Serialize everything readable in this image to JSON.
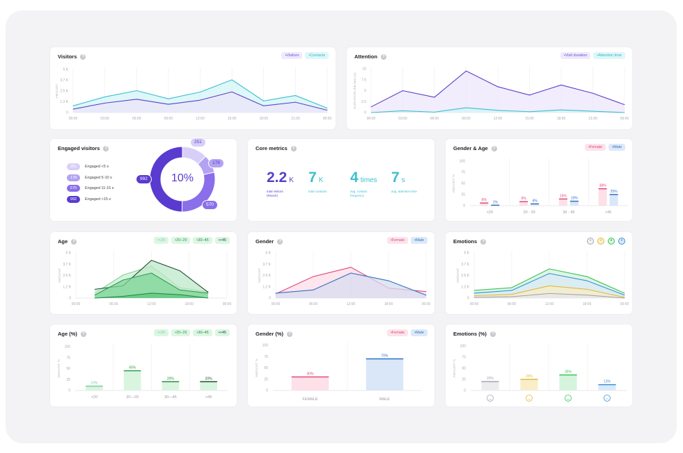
{
  "colors": {
    "purple": "#5b3fc9",
    "teal": "#3bbfcf",
    "female": "#e0487a",
    "male": "#2f6fc4",
    "green": "#2f9e4f"
  },
  "cards": {
    "visitors": {
      "title": "Visitors",
      "legend": [
        "Visitors",
        "Contacts"
      ]
    },
    "attention": {
      "title": "Attention",
      "legend": [
        "Visit duration",
        "Attention time"
      ]
    },
    "engaged": {
      "title": "Engaged visitors",
      "center": "10%",
      "items": [
        {
          "value": "251",
          "label": "Engaged <5 s",
          "color": "#d8cff8"
        },
        {
          "value": "178",
          "label": "Engaged 5-10 s",
          "color": "#b3a2f2"
        },
        {
          "value": "570",
          "label": "Engaged 11-15 s",
          "color": "#8a6eea"
        },
        {
          "value": "992",
          "label": "Engaged >15 s",
          "color": "#5a3bcf"
        }
      ]
    },
    "core": {
      "title": "Core metrics",
      "metrics": [
        {
          "value": "2.2",
          "unit": "K",
          "label": "total visitors (Reach)",
          "color": "#5b3fc9"
        },
        {
          "value": "7",
          "unit": "K",
          "label": "total contacts",
          "color": "#3bbfcf"
        },
        {
          "value": "4",
          "unit": "times",
          "label": "avg. contact frequency",
          "color": "#3bbfcf"
        },
        {
          "value": "7",
          "unit": "s",
          "label": "avg. attention time",
          "color": "#3bbfcf"
        }
      ]
    },
    "gender_age": {
      "title": "Gender & Age",
      "legend": [
        "Female",
        "Male"
      ]
    },
    "age": {
      "title": "Age",
      "legend": [
        "<20",
        "20–29",
        "30–45",
        ">45"
      ]
    },
    "gender": {
      "title": "Gender",
      "legend": [
        "Female",
        "Male"
      ]
    },
    "emotions": {
      "title": "Emotions",
      "icons": [
        "neutral-face",
        "happy-face",
        "surprised-face",
        "sad-face"
      ]
    },
    "age_pct": {
      "title": "Age (%)",
      "legend": [
        "<20",
        "20–29",
        "30–45",
        ">45"
      ]
    },
    "gender_pct": {
      "title": "Gender (%)",
      "legend": [
        "Female",
        "Male"
      ]
    },
    "emotions_pct": {
      "title": "Emotions (%)"
    }
  },
  "chart_data": [
    {
      "type": "area",
      "ylabel": "AMOUNT",
      "ylim": [
        0,
        5000
      ],
      "yticks": [
        "0",
        "1.2 K",
        "2.5 K",
        "3.7 K",
        "5 K"
      ],
      "xticks": [
        "00:00",
        "03:00",
        "06:00",
        "09:00",
        "12:00",
        "15:00",
        "18:00",
        "21:00",
        "00:00"
      ],
      "x": [
        "00:00",
        "03:00",
        "06:00",
        "09:00",
        "12:00",
        "15:00",
        "18:00",
        "21:00",
        "00:00"
      ],
      "series": [
        {
          "name": "Contacts",
          "color": "#3bbfcf",
          "fill": "#d3f4f6",
          "values": [
            780,
            1820,
            2540,
            1600,
            2380,
            3800,
            1340,
            1980,
            510
          ]
        },
        {
          "name": "Visitors",
          "color": "#5b3fc9",
          "fill": "#ebe6fb",
          "values": [
            400,
            1100,
            1550,
            960,
            1440,
            2400,
            780,
            1200,
            270
          ]
        }
      ]
    },
    {
      "type": "area",
      "ylabel": "DURATION (hh:mm:ss)",
      "ylim": [
        0,
        10
      ],
      "yticks": [
        "0",
        "2.5",
        "5",
        "7.5",
        "10"
      ],
      "xticks": [
        "00:00",
        "03:00",
        "06:00",
        "09:00",
        "12:00",
        "15:00",
        "18:00",
        "21:00",
        "00:00"
      ],
      "x": [
        "00:00",
        "03:00",
        "06:00",
        "09:00",
        "12:00",
        "15:00",
        "18:00",
        "21:00",
        "00:00"
      ],
      "series": [
        {
          "name": "Visit duration",
          "color": "#5b3fc9",
          "fill": "#ece7fb",
          "values": [
            1.3,
            5,
            3.5,
            9.5,
            5.9,
            4,
            6.3,
            4.4,
            1.8
          ]
        },
        {
          "name": "Attention time",
          "color": "#3bbfcf",
          "fill": "#d3f4f6",
          "values": [
            0,
            0.4,
            0.1,
            1.1,
            0.5,
            0.2,
            0.6,
            0.3,
            0
          ]
        }
      ]
    },
    {
      "type": "bar",
      "ylabel": "AMOUNT %",
      "ylim": [
        0,
        100
      ],
      "yticks": [
        "0",
        "25",
        "50",
        "75",
        "100"
      ],
      "categories": [
        "<20",
        "20 - 29",
        "30 - 45",
        ">45"
      ],
      "series": [
        {
          "name": "Female",
          "color": "#e0487a",
          "fill": "#fde0e8",
          "values": [
            6,
            9,
            15,
            38
          ],
          "labels": [
            "6%",
            "9%",
            "15%",
            "38%"
          ]
        },
        {
          "name": "Male",
          "color": "#2f6fc4",
          "fill": "#dae7f8",
          "values": [
            1,
            4,
            10,
            25
          ],
          "labels": [
            "1%",
            "4%",
            "10%",
            "25%"
          ]
        }
      ]
    },
    {
      "type": "area",
      "ylabel": "AMOUNT",
      "ylim": [
        0,
        5000
      ],
      "yticks": [
        "0",
        "1.2 K",
        "2.5 K",
        "3.7 K",
        "5 K"
      ],
      "xticks": [
        "00:00",
        "06:00",
        "12:00",
        "18:00",
        "00:00"
      ],
      "x": [
        "03:00",
        "07:30",
        "12:00",
        "16:30",
        "21:00"
      ],
      "series": [
        {
          "name": "20–29",
          "color": "#7fcf95",
          "fill": "#c9efd3",
          "values": [
            540,
            2560,
            3540,
            1150,
            720
          ]
        },
        {
          "name": ">45",
          "color": "#1f4d30",
          "fill": "#bfe8ca",
          "values": [
            970,
            1360,
            4180,
            3030,
            640
          ]
        },
        {
          "name": "30–45",
          "color": "#2f9e4f",
          "fill": "#7fd59a",
          "values": [
            330,
            2000,
            2770,
            900,
            540
          ]
        },
        {
          "name": "<20",
          "color": "#2b8a45",
          "fill": "#5cc77d",
          "values": [
            0,
            200,
            540,
            380,
            0
          ]
        }
      ]
    },
    {
      "type": "area",
      "ylabel": "AMOUNT",
      "ylim": [
        0,
        5000
      ],
      "yticks": [
        "0",
        "1.2 K",
        "2.5 K",
        "3.7 K",
        "5 K"
      ],
      "xticks": [
        "00:00",
        "06:00",
        "12:00",
        "18:00",
        "00:00"
      ],
      "x": [
        "00:00",
        "06:00",
        "12:00",
        "18:00",
        "00:00"
      ],
      "series": [
        {
          "name": "Female",
          "color": "#e0487a",
          "fill": "#fcdde7",
          "values": [
            460,
            2380,
            3410,
            1100,
            720
          ]
        },
        {
          "name": "Male",
          "color": "#2f6fc4",
          "fill": "#d7dcf0",
          "values": [
            540,
            900,
            2770,
            1920,
            330
          ]
        }
      ]
    },
    {
      "type": "area",
      "ylabel": "AMOUNT",
      "ylim": [
        0,
        5000
      ],
      "yticks": [
        "0",
        "1.2 K",
        "2.5 K",
        "3.7 K",
        "5 K"
      ],
      "xticks": [
        "00:00",
        "06:00",
        "12:00",
        "18:00",
        "00:00"
      ],
      "x": [
        "00:00",
        "06:00",
        "12:00",
        "18:00",
        "00:00"
      ],
      "series": [
        {
          "name": "surprised",
          "color": "#3cc25e",
          "fill": "#d2f3da",
          "values": [
            850,
            1150,
            3230,
            2380,
            540
          ]
        },
        {
          "name": "sad",
          "color": "#3a8fd6",
          "fill": "#d9eaf8",
          "values": [
            540,
            850,
            2720,
            1920,
            330
          ]
        },
        {
          "name": "happy",
          "color": "#e2b93b",
          "fill": "#f8ecc6",
          "values": [
            260,
            410,
            1360,
            970,
            80
          ]
        },
        {
          "name": "neutral",
          "color": "#a5a5ad",
          "fill": "#e6e6ea",
          "values": [
            80,
            150,
            510,
            330,
            0
          ]
        }
      ]
    },
    {
      "type": "bar",
      "ylabel": "AMOUNT %",
      "ylim": [
        0,
        100
      ],
      "yticks": [
        "0",
        "25",
        "50",
        "75",
        "100"
      ],
      "categories": [
        "<20",
        "20—29",
        "30—45",
        ">45"
      ],
      "series": [
        {
          "name": "Age",
          "fill": "#d9f5e0",
          "colors": [
            "#7fcf95",
            "#2f9e4f",
            "#2b8a45",
            "#1f4d30"
          ],
          "values": [
            10,
            45,
            20,
            20
          ],
          "labels": [
            "10%",
            "45%",
            "20%",
            "20%"
          ]
        }
      ]
    },
    {
      "type": "bar",
      "ylabel": "AMOUNT %",
      "ylim": [
        0,
        100
      ],
      "yticks": [
        "0",
        "25",
        "50",
        "75",
        "100"
      ],
      "categories": [
        "FEMALE",
        "MALE"
      ],
      "catcolors": [
        "#e0487a",
        "#2f6fc4"
      ],
      "series": [
        {
          "name": "Gender",
          "fills": [
            "#fde0e8",
            "#dae7f8"
          ],
          "colors": [
            "#e0487a",
            "#2f6fc4"
          ],
          "values": [
            30,
            70
          ],
          "labels": [
            "30%",
            "70%"
          ]
        }
      ]
    },
    {
      "type": "bar",
      "ylabel": "AMOUNT %",
      "ylim": [
        0,
        100
      ],
      "yticks": [
        "0",
        "25",
        "50",
        "75",
        "100"
      ],
      "categories": [
        "neutral",
        "happy",
        "surprised",
        "sad"
      ],
      "icons": true,
      "series": [
        {
          "name": "Emotions",
          "fills": [
            "#ececef",
            "#f8eec9",
            "#d6f4dd",
            "#dbeaf8"
          ],
          "colors": [
            "#a5a5ad",
            "#e2b93b",
            "#3cc25e",
            "#3a8fd6"
          ],
          "values": [
            20,
            25,
            35,
            13
          ],
          "labels": [
            "20%",
            "25%",
            "35%",
            "13%"
          ]
        }
      ]
    }
  ]
}
